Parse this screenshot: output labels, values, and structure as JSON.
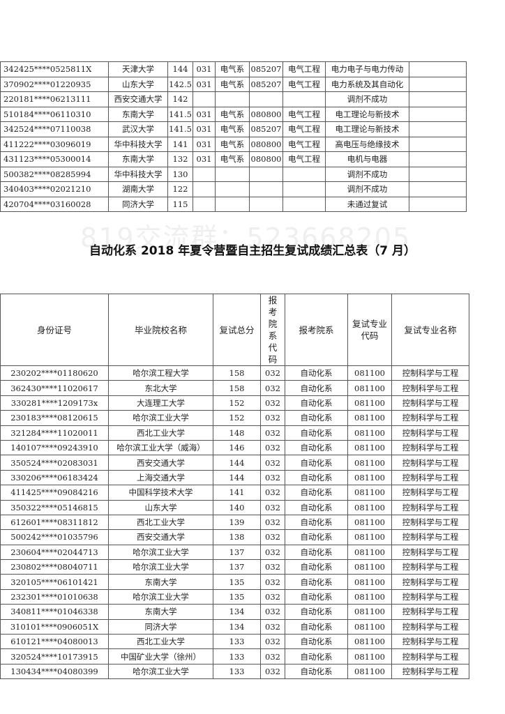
{
  "watermark": "819交流群：523668205",
  "table1": {
    "rows": [
      [
        "342425****0525811X",
        "天津大学",
        "144",
        "031",
        "电气系",
        "085207",
        "电气工程",
        "电力电子与电力传动",
        ""
      ],
      [
        "370902****01220935",
        "山东大学",
        "142.5",
        "031",
        "电气系",
        "085207",
        "电气工程",
        "电力系统及其自动化",
        ""
      ],
      [
        "220181****06213111",
        "西安交通大学",
        "142",
        "",
        "",
        "",
        "",
        "调剂不成功",
        ""
      ],
      [
        "510184****06110310",
        "东南大学",
        "141.5",
        "031",
        "电气系",
        "080800",
        "电气工程",
        "电工理论与新技术",
        ""
      ],
      [
        "342524****07110038",
        "武汉大学",
        "141.5",
        "031",
        "电气系",
        "085207",
        "电气工程",
        "电工理论与新技术",
        ""
      ],
      [
        "411222****03096019",
        "华中科技大学",
        "141",
        "031",
        "电气系",
        "080800",
        "电气工程",
        "高电压与绝缘技术",
        ""
      ],
      [
        "431123****05300014",
        "东南大学",
        "132",
        "031",
        "电气系",
        "080800",
        "电气工程",
        "电机与电器",
        ""
      ],
      [
        "500382****08285994",
        "华中科技大学",
        "130",
        "",
        "",
        "",
        "",
        "调剂不成功",
        ""
      ],
      [
        "340403****02021210",
        "湖南大学",
        "122",
        "",
        "",
        "",
        "",
        "调剂不成功",
        ""
      ],
      [
        "420704****03160028",
        "同济大学",
        "115",
        "",
        "",
        "",
        "",
        "未通过复试",
        ""
      ]
    ]
  },
  "title": "自动化系 2018 年夏令营暨自主招生复试成绩汇总表（7 月）",
  "table2": {
    "headers": [
      "身份证号",
      "毕业院校名称",
      "复试总分",
      "报考院系代码",
      "报考院系",
      "复试专业代码",
      "复试专业名称"
    ],
    "rows": [
      [
        "230202****01180620",
        "哈尔滨工程大学",
        "158",
        "032",
        "自动化系",
        "081100",
        "控制科学与工程"
      ],
      [
        "362430****11020617",
        "东北大学",
        "158",
        "032",
        "自动化系",
        "081100",
        "控制科学与工程"
      ],
      [
        "330281****1209173x",
        "大连理工大学",
        "152",
        "032",
        "自动化系",
        "081100",
        "控制科学与工程"
      ],
      [
        "230183****08120615",
        "哈尔滨工业大学",
        "152",
        "032",
        "自动化系",
        "081100",
        "控制科学与工程"
      ],
      [
        "321284****11020011",
        "西北工业大学",
        "148",
        "032",
        "自动化系",
        "081100",
        "控制科学与工程"
      ],
      [
        "140107****09243910",
        "哈尔滨工业大学（威海）",
        "146",
        "032",
        "自动化系",
        "081100",
        "控制科学与工程"
      ],
      [
        "350524****02083031",
        "西安交通大学",
        "144",
        "032",
        "自动化系",
        "081100",
        "控制科学与工程"
      ],
      [
        "330206****06183424",
        "上海交通大学",
        "144",
        "032",
        "自动化系",
        "081100",
        "控制科学与工程"
      ],
      [
        "411425****09084216",
        "中国科学技术大学",
        "141",
        "032",
        "自动化系",
        "081100",
        "控制科学与工程"
      ],
      [
        "350322****05146815",
        "山东大学",
        "140",
        "032",
        "自动化系",
        "081100",
        "控制科学与工程"
      ],
      [
        "612601****08311812",
        "西北工业大学",
        "139",
        "032",
        "自动化系",
        "081100",
        "控制科学与工程"
      ],
      [
        "500242****01035796",
        "西安交通大学",
        "138",
        "032",
        "自动化系",
        "081100",
        "控制科学与工程"
      ],
      [
        "230604****02044713",
        "哈尔滨工业大学",
        "137",
        "032",
        "自动化系",
        "081100",
        "控制科学与工程"
      ],
      [
        "230802****08040711",
        "哈尔滨工业大学",
        "137",
        "032",
        "自动化系",
        "081100",
        "控制科学与工程"
      ],
      [
        "320105****06101421",
        "东南大学",
        "135",
        "032",
        "自动化系",
        "081100",
        "控制科学与工程"
      ],
      [
        "232301****01010638",
        "哈尔滨工业大学",
        "135",
        "032",
        "自动化系",
        "081100",
        "控制科学与工程"
      ],
      [
        "340811****01046338",
        "东南大学",
        "134",
        "032",
        "自动化系",
        "081100",
        "控制科学与工程"
      ],
      [
        "310101****0906051X",
        "同济大学",
        "134",
        "032",
        "自动化系",
        "081100",
        "控制科学与工程"
      ],
      [
        "610121****04080013",
        "西北工业大学",
        "133",
        "032",
        "自动化系",
        "081100",
        "控制科学与工程"
      ],
      [
        "320524****10173915",
        "中国矿业大学（徐州）",
        "133",
        "032",
        "自动化系",
        "081100",
        "控制科学与工程"
      ],
      [
        "130434****04080399",
        "哈尔滨工业大学",
        "133",
        "032",
        "自动化系",
        "081100",
        "控制科学与工程"
      ]
    ]
  }
}
